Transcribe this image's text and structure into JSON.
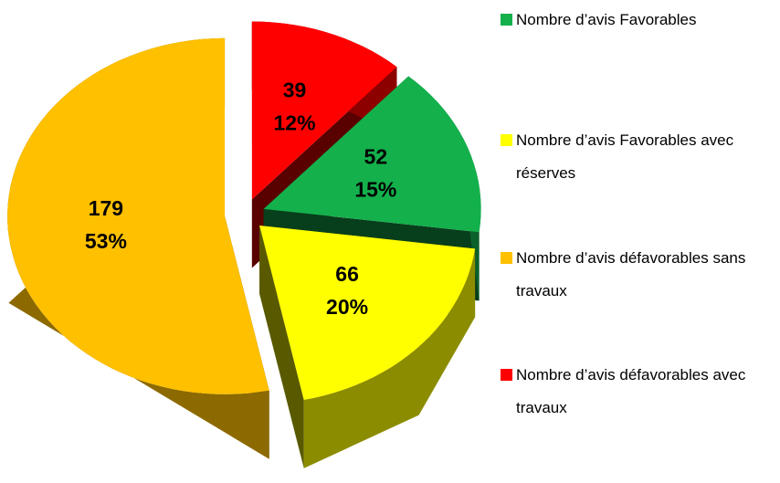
{
  "chart_data": {
    "type": "pie",
    "categories": [
      "Nombre d’avis Favorables",
      "Nombre d’avis Favorables avec réserves",
      "Nombre d’avis défavorables sans travaux",
      "Nombre d’avis défavorables avec travaux"
    ],
    "values": [
      52,
      66,
      179,
      39
    ],
    "percent_labels": [
      "15%",
      "20%",
      "53%",
      "12%"
    ],
    "colors": [
      "#14b04c",
      "#ffff00",
      "#ffc000",
      "#ff0000"
    ],
    "legend": "right"
  }
}
